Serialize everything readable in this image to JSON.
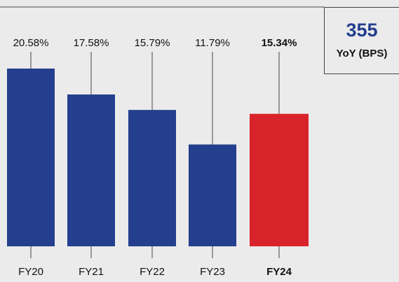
{
  "chart_data": {
    "type": "bar",
    "categories": [
      "FY20",
      "FY21",
      "FY22",
      "FY23",
      "FY24"
    ],
    "values": [
      20.58,
      17.58,
      15.79,
      11.79,
      15.34
    ],
    "value_labels": [
      "20.58%",
      "17.58%",
      "15.79%",
      "11.79%",
      "15.34%"
    ],
    "colors": [
      "#233f8e",
      "#233f8e",
      "#233f8e",
      "#233f8e",
      "#d9232b"
    ],
    "highlight_index": 4,
    "callout": {
      "value": "355",
      "label": "YoY (BPS)"
    }
  }
}
